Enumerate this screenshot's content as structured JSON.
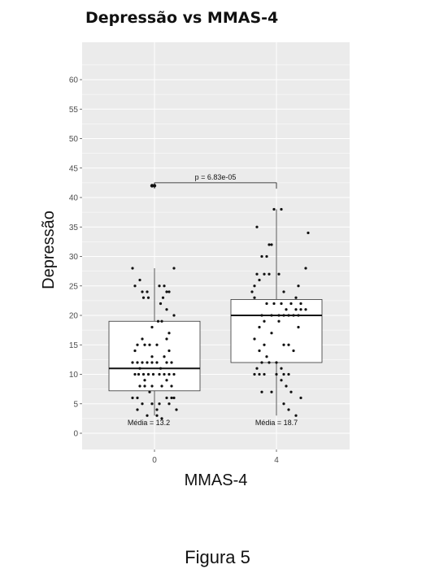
{
  "chart_data": {
    "type": "box",
    "title": "Depressão vs MMAS-4",
    "xlabel": "MMAS-4",
    "ylabel": "Depressão",
    "categories": [
      "0",
      "4"
    ],
    "ylim": [
      -2,
      66
    ],
    "yticks": [
      0,
      5,
      10,
      15,
      20,
      25,
      30,
      35,
      40,
      45,
      50,
      55,
      60
    ],
    "grid": true,
    "boxes": [
      {
        "category": "0",
        "q1": 7.2,
        "median": 11,
        "q3": 19,
        "whisker_low": 3,
        "whisker_high": 28,
        "outliers": [
          42,
          42
        ]
      },
      {
        "category": "4",
        "q1": 12,
        "median": 20,
        "q3": 22.7,
        "whisker_low": 3,
        "whisker_high": 38,
        "outliers": []
      }
    ],
    "points": [
      [
        {
          "dx": -0.18,
          "y": 28
        },
        {
          "dx": 0.16,
          "y": 28
        },
        {
          "dx": -0.12,
          "y": 26
        },
        {
          "dx": -0.16,
          "y": 25
        },
        {
          "dx": 0.04,
          "y": 25
        },
        {
          "dx": 0.08,
          "y": 25
        },
        {
          "dx": -0.1,
          "y": 24
        },
        {
          "dx": -0.06,
          "y": 24
        },
        {
          "dx": 0.1,
          "y": 24
        },
        {
          "dx": 0.12,
          "y": 24
        },
        {
          "dx": -0.09,
          "y": 23
        },
        {
          "dx": -0.05,
          "y": 23
        },
        {
          "dx": 0.07,
          "y": 23
        },
        {
          "dx": 0.05,
          "y": 22
        },
        {
          "dx": 0.1,
          "y": 21
        },
        {
          "dx": 0.16,
          "y": 20
        },
        {
          "dx": 0.03,
          "y": 19
        },
        {
          "dx": 0.06,
          "y": 19
        },
        {
          "dx": -0.02,
          "y": 18
        },
        {
          "dx": 0.12,
          "y": 17
        },
        {
          "dx": -0.1,
          "y": 16
        },
        {
          "dx": 0.1,
          "y": 16
        },
        {
          "dx": -0.14,
          "y": 15
        },
        {
          "dx": -0.08,
          "y": 15
        },
        {
          "dx": -0.04,
          "y": 15
        },
        {
          "dx": 0.02,
          "y": 15
        },
        {
          "dx": -0.16,
          "y": 14
        },
        {
          "dx": 0.12,
          "y": 14
        },
        {
          "dx": -0.02,
          "y": 13
        },
        {
          "dx": 0.08,
          "y": 13
        },
        {
          "dx": -0.18,
          "y": 12
        },
        {
          "dx": -0.14,
          "y": 12
        },
        {
          "dx": -0.1,
          "y": 12
        },
        {
          "dx": -0.06,
          "y": 12
        },
        {
          "dx": -0.02,
          "y": 12
        },
        {
          "dx": 0.02,
          "y": 12
        },
        {
          "dx": 0.1,
          "y": 12
        },
        {
          "dx": 0.14,
          "y": 12
        },
        {
          "dx": -0.12,
          "y": 11
        },
        {
          "dx": 0.05,
          "y": 11
        },
        {
          "dx": -0.16,
          "y": 10
        },
        {
          "dx": -0.13,
          "y": 10
        },
        {
          "dx": -0.09,
          "y": 10
        },
        {
          "dx": -0.05,
          "y": 10
        },
        {
          "dx": -0.01,
          "y": 10
        },
        {
          "dx": 0.04,
          "y": 10
        },
        {
          "dx": 0.08,
          "y": 10
        },
        {
          "dx": 0.12,
          "y": 10
        },
        {
          "dx": 0.16,
          "y": 10
        },
        {
          "dx": -0.08,
          "y": 9
        },
        {
          "dx": 0.1,
          "y": 9
        },
        {
          "dx": -0.12,
          "y": 8
        },
        {
          "dx": -0.08,
          "y": 8
        },
        {
          "dx": -0.02,
          "y": 8
        },
        {
          "dx": 0.06,
          "y": 8
        },
        {
          "dx": 0.14,
          "y": 8
        },
        {
          "dx": -0.04,
          "y": 7
        },
        {
          "dx": -0.18,
          "y": 6
        },
        {
          "dx": -0.14,
          "y": 6
        },
        {
          "dx": 0.1,
          "y": 6
        },
        {
          "dx": 0.14,
          "y": 6
        },
        {
          "dx": 0.16,
          "y": 6
        },
        {
          "dx": -0.1,
          "y": 5
        },
        {
          "dx": -0.02,
          "y": 5
        },
        {
          "dx": 0.04,
          "y": 5
        },
        {
          "dx": 0.12,
          "y": 5
        },
        {
          "dx": -0.14,
          "y": 4
        },
        {
          "dx": 0.02,
          "y": 4
        },
        {
          "dx": 0.18,
          "y": 4
        },
        {
          "dx": -0.06,
          "y": 3
        },
        {
          "dx": 0.02,
          "y": 3
        },
        {
          "dx": 0.06,
          "y": 2.5
        }
      ],
      [
        {
          "dx": -0.02,
          "y": 38
        },
        {
          "dx": 0.04,
          "y": 38
        },
        {
          "dx": -0.16,
          "y": 35
        },
        {
          "dx": 0.26,
          "y": 34
        },
        {
          "dx": -0.06,
          "y": 32
        },
        {
          "dx": -0.04,
          "y": 32
        },
        {
          "dx": -0.12,
          "y": 30
        },
        {
          "dx": -0.08,
          "y": 30
        },
        {
          "dx": 0.24,
          "y": 28
        },
        {
          "dx": -0.16,
          "y": 27
        },
        {
          "dx": -0.1,
          "y": 27
        },
        {
          "dx": -0.06,
          "y": 27
        },
        {
          "dx": 0.02,
          "y": 27
        },
        {
          "dx": -0.14,
          "y": 26
        },
        {
          "dx": -0.18,
          "y": 25
        },
        {
          "dx": 0.18,
          "y": 25
        },
        {
          "dx": -0.2,
          "y": 24
        },
        {
          "dx": 0.06,
          "y": 24
        },
        {
          "dx": -0.18,
          "y": 23
        },
        {
          "dx": 0.16,
          "y": 23
        },
        {
          "dx": -0.08,
          "y": 22
        },
        {
          "dx": -0.02,
          "y": 22
        },
        {
          "dx": 0.04,
          "y": 22
        },
        {
          "dx": 0.12,
          "y": 22
        },
        {
          "dx": 0.2,
          "y": 22
        },
        {
          "dx": 0.08,
          "y": 21
        },
        {
          "dx": 0.16,
          "y": 21
        },
        {
          "dx": 0.2,
          "y": 21
        },
        {
          "dx": 0.24,
          "y": 21
        },
        {
          "dx": -0.12,
          "y": 20
        },
        {
          "dx": -0.04,
          "y": 20
        },
        {
          "dx": 0.02,
          "y": 20
        },
        {
          "dx": 0.06,
          "y": 20
        },
        {
          "dx": 0.1,
          "y": 20
        },
        {
          "dx": 0.14,
          "y": 20
        },
        {
          "dx": 0.18,
          "y": 20
        },
        {
          "dx": -0.1,
          "y": 19
        },
        {
          "dx": 0.02,
          "y": 19
        },
        {
          "dx": -0.14,
          "y": 18
        },
        {
          "dx": 0.18,
          "y": 18
        },
        {
          "dx": -0.04,
          "y": 17
        },
        {
          "dx": -0.18,
          "y": 16
        },
        {
          "dx": -0.1,
          "y": 15
        },
        {
          "dx": 0.06,
          "y": 15
        },
        {
          "dx": 0.1,
          "y": 15
        },
        {
          "dx": -0.14,
          "y": 14
        },
        {
          "dx": 0.14,
          "y": 14
        },
        {
          "dx": -0.08,
          "y": 13
        },
        {
          "dx": -0.12,
          "y": 12
        },
        {
          "dx": -0.06,
          "y": 12
        },
        {
          "dx": 0.0,
          "y": 12
        },
        {
          "dx": -0.16,
          "y": 11
        },
        {
          "dx": 0.04,
          "y": 11
        },
        {
          "dx": -0.18,
          "y": 10
        },
        {
          "dx": -0.14,
          "y": 10
        },
        {
          "dx": -0.1,
          "y": 10
        },
        {
          "dx": 0.0,
          "y": 10
        },
        {
          "dx": 0.06,
          "y": 10
        },
        {
          "dx": 0.1,
          "y": 10
        },
        {
          "dx": 0.04,
          "y": 9
        },
        {
          "dx": 0.08,
          "y": 8
        },
        {
          "dx": -0.12,
          "y": 7
        },
        {
          "dx": -0.04,
          "y": 7
        },
        {
          "dx": 0.12,
          "y": 7
        },
        {
          "dx": 0.2,
          "y": 6
        },
        {
          "dx": 0.06,
          "y": 5
        },
        {
          "dx": 0.1,
          "y": 4
        },
        {
          "dx": 0.16,
          "y": 3
        }
      ]
    ],
    "annotations": {
      "p_value": "p = 6.83e-05",
      "means": [
        "Média =  13.2",
        "Média =  18.7"
      ]
    },
    "colors": {
      "panel": "#ebebeb",
      "grid": "#ffffff",
      "box_fill": "#ffffff",
      "box_stroke": "#333333",
      "point": "#111111"
    }
  },
  "caption": "Figura 5"
}
